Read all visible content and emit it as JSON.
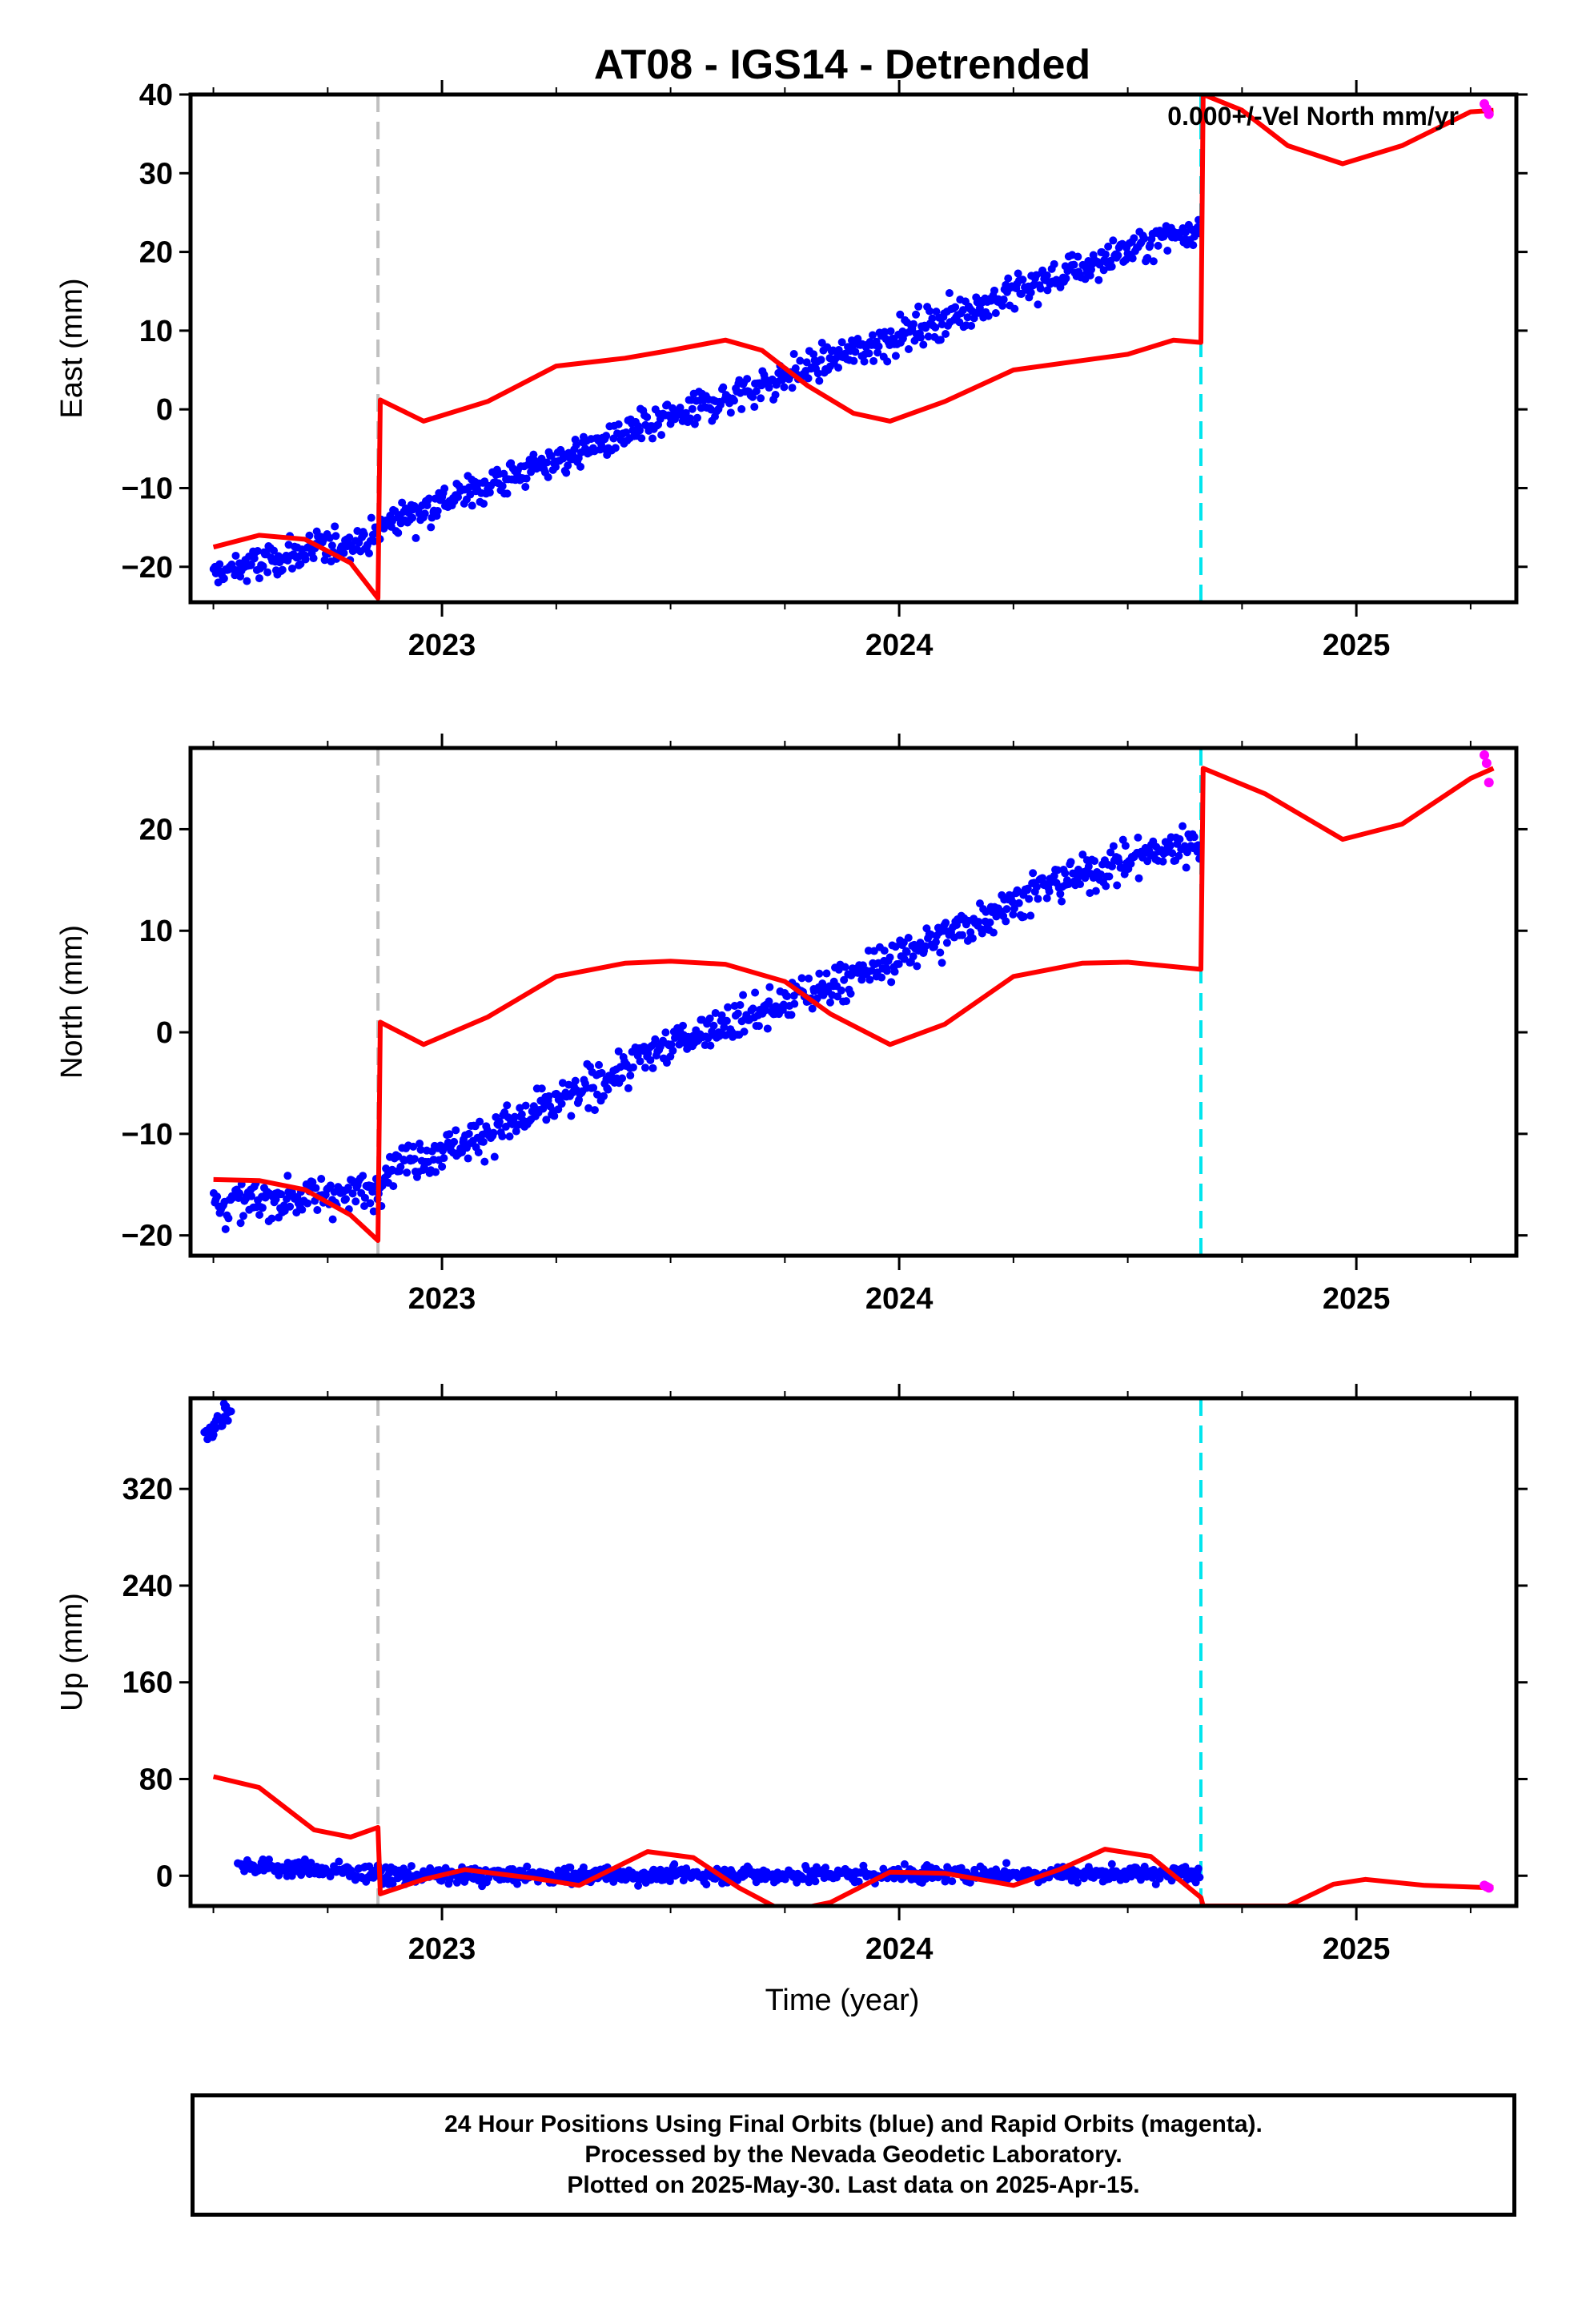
{
  "chart_data": {
    "title": "AT08 - IGS14 - Detrended",
    "xlabel": "Time (year)",
    "xlim": [
      2022.45,
      2025.35
    ],
    "x_ticks": [
      2023,
      2024,
      2025
    ],
    "x_tick_labels": [
      "2023",
      "2024",
      "2025"
    ],
    "event_lines": [
      {
        "x": 2022.86,
        "color": "#c0c0c0"
      },
      {
        "x": 2024.66,
        "color": "#00e5ee"
      }
    ],
    "colors": {
      "final_orbits": "#0000ff",
      "rapid_orbits": "#ff00ff",
      "model": "#ff0000"
    },
    "panels": [
      {
        "type": "scatter",
        "ylabel": "East (mm)",
        "ylim": [
          -24.5,
          40
        ],
        "y_ticks": [
          -20,
          -10,
          0,
          10,
          20,
          30,
          40
        ],
        "y_tick_labels": [
          "−20",
          "−10",
          "0",
          "10",
          "20",
          "30",
          "40"
        ],
        "annotation": "0.000+/-Vel North mm/yr",
        "final_trend": [
          [
            2022.5,
            -21
          ],
          [
            2022.86,
            -16
          ],
          [
            2022.87,
            -14.5
          ],
          [
            2024.66,
            23.5
          ]
        ],
        "final_scatter": 1.6,
        "rapid_points": [
          [
            2025.28,
            38.8
          ],
          [
            2025.29,
            37.5
          ],
          [
            2025.285,
            38.2
          ]
        ],
        "model_line": [
          [
            2022.5,
            -17.5
          ],
          [
            2022.6,
            -16
          ],
          [
            2022.7,
            -16.5
          ],
          [
            2022.8,
            -19.5
          ],
          [
            2022.86,
            -24
          ],
          [
            2022.865,
            1.2
          ],
          [
            2022.96,
            -1.5
          ],
          [
            2023.1,
            1
          ],
          [
            2023.25,
            5.5
          ],
          [
            2023.4,
            6.5
          ],
          [
            2023.5,
            7.5
          ],
          [
            2023.62,
            8.8
          ],
          [
            2023.7,
            7.5
          ],
          [
            2023.8,
            3
          ],
          [
            2023.9,
            -0.5
          ],
          [
            2023.98,
            -1.5
          ],
          [
            2024.1,
            1
          ],
          [
            2024.25,
            5
          ],
          [
            2024.4,
            6.2
          ],
          [
            2024.5,
            7
          ],
          [
            2024.6,
            8.8
          ],
          [
            2024.66,
            8.5
          ],
          [
            2024.665,
            40
          ],
          [
            2024.75,
            38
          ],
          [
            2024.85,
            33.5
          ],
          [
            2024.97,
            31.2
          ],
          [
            2025.1,
            33.5
          ],
          [
            2025.25,
            37.8
          ],
          [
            2025.3,
            38
          ]
        ]
      },
      {
        "type": "scatter",
        "ylabel": "North (mm)",
        "ylim": [
          -22,
          28
        ],
        "y_ticks": [
          -20,
          -10,
          0,
          10,
          20
        ],
        "y_tick_labels": [
          "−20",
          "−10",
          "0",
          "10",
          "20"
        ],
        "annotation": "",
        "final_trend": [
          [
            2022.5,
            -17
          ],
          [
            2022.86,
            -15.5
          ],
          [
            2022.87,
            -13.5
          ],
          [
            2023.1,
            -10
          ],
          [
            2023.3,
            -6
          ],
          [
            2023.5,
            -1
          ],
          [
            2023.7,
            2
          ],
          [
            2023.9,
            5.5
          ],
          [
            2024.1,
            9.5
          ],
          [
            2024.3,
            14
          ],
          [
            2024.5,
            17
          ],
          [
            2024.66,
            19
          ]
        ],
        "final_scatter": 1.4,
        "rapid_points": [
          [
            2025.28,
            27.3
          ],
          [
            2025.29,
            24.6
          ],
          [
            2025.285,
            26.5
          ]
        ],
        "model_line": [
          [
            2022.5,
            -14.5
          ],
          [
            2022.6,
            -14.6
          ],
          [
            2022.7,
            -15.5
          ],
          [
            2022.8,
            -18
          ],
          [
            2022.86,
            -20.5
          ],
          [
            2022.865,
            1
          ],
          [
            2022.96,
            -1.2
          ],
          [
            2023.1,
            1.5
          ],
          [
            2023.25,
            5.5
          ],
          [
            2023.4,
            6.8
          ],
          [
            2023.5,
            7
          ],
          [
            2023.62,
            6.7
          ],
          [
            2023.75,
            5
          ],
          [
            2023.85,
            1.8
          ],
          [
            2023.98,
            -1.2
          ],
          [
            2024.1,
            0.8
          ],
          [
            2024.25,
            5.5
          ],
          [
            2024.4,
            6.8
          ],
          [
            2024.5,
            6.9
          ],
          [
            2024.66,
            6.2
          ],
          [
            2024.665,
            26
          ],
          [
            2024.8,
            23.5
          ],
          [
            2024.97,
            19
          ],
          [
            2025.1,
            20.5
          ],
          [
            2025.25,
            25
          ],
          [
            2025.3,
            26
          ]
        ]
      },
      {
        "type": "scatter",
        "ylabel": "Up (mm)",
        "ylim": [
          -25,
          395
        ],
        "y_ticks": [
          0,
          80,
          160,
          240,
          320
        ],
        "y_tick_labels": [
          "0",
          "80",
          "160",
          "240",
          "320"
        ],
        "annotation": "",
        "final_early": [
          [
            2022.49,
            365
          ],
          [
            2022.51,
            375
          ],
          [
            2022.53,
            385
          ]
        ],
        "final_trend": [
          [
            2022.55,
            9
          ],
          [
            2022.86,
            2
          ],
          [
            2022.87,
            0
          ],
          [
            2024.66,
            2
          ]
        ],
        "final_scatter": 5,
        "rapid_points": [
          [
            2025.28,
            -8
          ],
          [
            2025.29,
            -10
          ],
          [
            2025.285,
            -9
          ]
        ],
        "model_line": [
          [
            2022.5,
            82
          ],
          [
            2022.6,
            73
          ],
          [
            2022.72,
            38
          ],
          [
            2022.8,
            32
          ],
          [
            2022.86,
            40
          ],
          [
            2022.865,
            -15
          ],
          [
            2022.96,
            -3
          ],
          [
            2023.05,
            5
          ],
          [
            2023.2,
            -2
          ],
          [
            2023.3,
            -8
          ],
          [
            2023.45,
            20
          ],
          [
            2023.55,
            15
          ],
          [
            2023.65,
            -10
          ],
          [
            2023.75,
            -30
          ],
          [
            2023.85,
            -22
          ],
          [
            2023.98,
            3
          ],
          [
            2024.1,
            2
          ],
          [
            2024.25,
            -8
          ],
          [
            2024.35,
            5
          ],
          [
            2024.45,
            22
          ],
          [
            2024.55,
            16
          ],
          [
            2024.66,
            -18
          ],
          [
            2024.665,
            -25
          ],
          [
            2024.85,
            -25
          ],
          [
            2024.95,
            -7
          ],
          [
            2025.02,
            -3
          ],
          [
            2025.15,
            -8
          ],
          [
            2025.3,
            -10
          ]
        ]
      }
    ]
  },
  "footer": {
    "line1": "24 Hour Positions Using Final Orbits (blue) and Rapid Orbits (magenta).",
    "line2": "Processed by the Nevada Geodetic Laboratory.",
    "line3": "Plotted on 2025-May-30. Last data on 2025-Apr-15."
  }
}
